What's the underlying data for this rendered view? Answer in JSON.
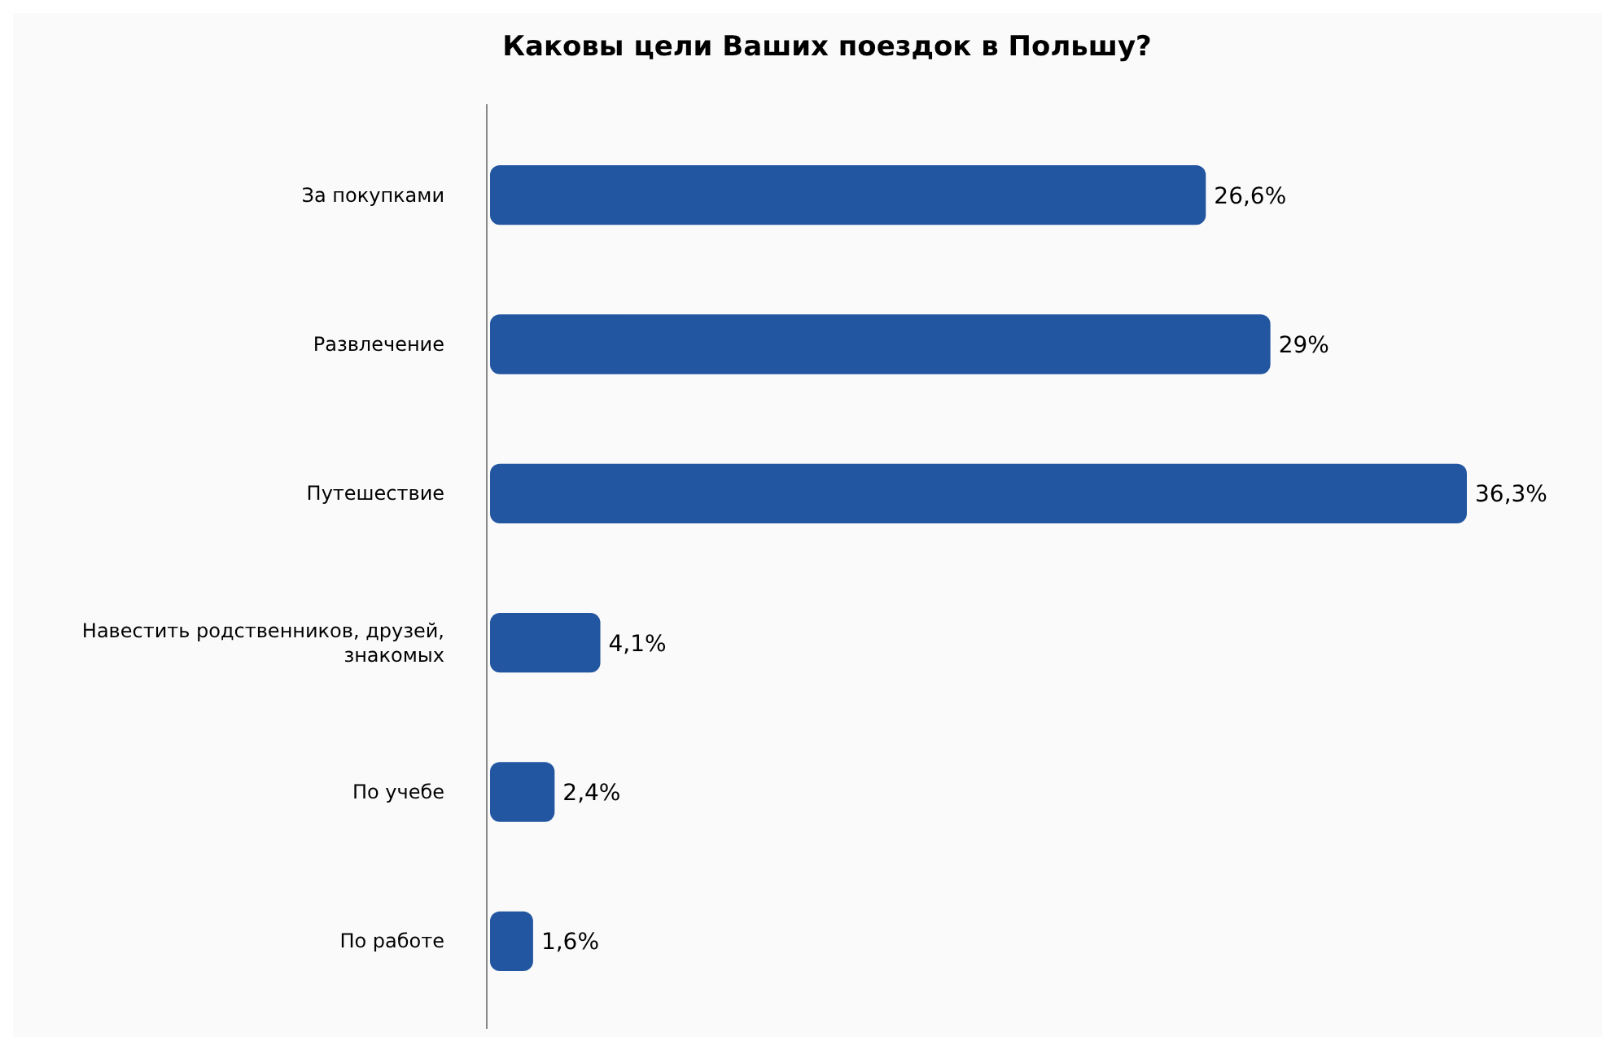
{
  "chart_data": {
    "type": "bar",
    "orientation": "horizontal",
    "title": "Каковы цели Ваших поездок в Польшу?",
    "categories": [
      "За покупками",
      "Развлечение",
      "Путешествие",
      "Навестить родственников, друзей, знакомых",
      "По учебе",
      "По работе"
    ],
    "values": [
      26.6,
      29,
      36.3,
      4.1,
      2.4,
      1.6
    ],
    "value_labels": [
      "26,6%",
      "29%",
      "36,3%",
      "4,1%",
      "2,4%",
      "1,6%"
    ],
    "color": "#2356a0"
  }
}
